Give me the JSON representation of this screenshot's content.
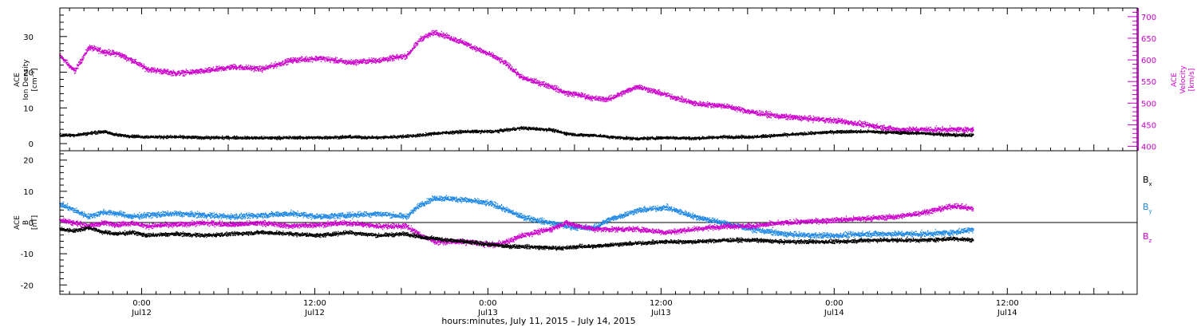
{
  "chart_data": [
    {
      "type": "scatter",
      "panel": "top",
      "ylabel_left": [
        "ACE",
        "Ion Density",
        "[cm⁻³]"
      ],
      "ylabel_right": [
        "ACE",
        "Velocity",
        "[km/s]"
      ],
      "ylim_left": [
        -2,
        38
      ],
      "ylim_right": [
        390,
        720
      ],
      "yticks_left": [
        0,
        10,
        20,
        30
      ],
      "yticks_right": [
        400,
        450,
        500,
        550,
        600,
        650,
        700
      ],
      "grid": false,
      "series": [
        {
          "axis": "left",
          "color": "#000000",
          "x": [
            0.0,
            1.0,
            2.0,
            3.0,
            4.0,
            5.0,
            6.0,
            8.0,
            10.0,
            12.0,
            14.0,
            16.0,
            18.0,
            20.0,
            22.0,
            24.0,
            25.0,
            26.0,
            28.0,
            30.0,
            31.0,
            32.0,
            34.0,
            35.0,
            36.0,
            37.0,
            38.0,
            40.0,
            42.0,
            44.0,
            46.0,
            48.0,
            50.0,
            52.0,
            54.0,
            56.0,
            58.0,
            60.0,
            62.0,
            63.3
          ],
          "y": [
            2.5,
            2.5,
            3.0,
            3.5,
            2.5,
            2.2,
            2.0,
            2.0,
            1.8,
            1.8,
            1.7,
            1.8,
            1.8,
            2.0,
            1.8,
            2.2,
            2.5,
            3.0,
            3.5,
            3.5,
            4.0,
            4.5,
            4.0,
            3.0,
            2.5,
            2.5,
            2.0,
            1.5,
            1.8,
            1.6,
            2.0,
            2.0,
            2.5,
            3.0,
            3.5,
            3.5,
            3.2,
            3.0,
            2.5,
            2.5
          ]
        },
        {
          "axis": "right",
          "color": "#cc00cc",
          "x": [
            0.0,
            1.0,
            2.0,
            3.0,
            4.0,
            5.0,
            6.0,
            8.0,
            10.0,
            12.0,
            14.0,
            16.0,
            18.0,
            20.0,
            22.0,
            24.0,
            25.0,
            26.0,
            28.0,
            30.0,
            31.0,
            32.0,
            34.0,
            35.0,
            36.0,
            37.0,
            38.0,
            40.0,
            42.0,
            44.0,
            46.0,
            48.0,
            50.0,
            52.0,
            54.0,
            56.0,
            58.0,
            60.0,
            62.0,
            63.3
          ],
          "y": [
            610,
            575,
            630,
            620,
            615,
            600,
            580,
            570,
            575,
            585,
            580,
            600,
            605,
            595,
            600,
            610,
            650,
            665,
            640,
            610,
            590,
            560,
            540,
            525,
            520,
            512,
            510,
            540,
            520,
            500,
            495,
            480,
            470,
            465,
            460,
            450,
            440,
            440,
            440,
            440
          ]
        }
      ]
    },
    {
      "type": "scatter",
      "panel": "bottom",
      "ylabel_left": [
        "ACE",
        "B",
        "[nT]"
      ],
      "ylim": [
        -23,
        23
      ],
      "yticks": [
        -20,
        -10,
        0,
        10,
        20
      ],
      "zero_line": true,
      "grid": false,
      "legend_position": "right",
      "series": [
        {
          "name": "Bx",
          "color": "#000000",
          "x": [
            0.0,
            1.0,
            2.0,
            3.0,
            4.0,
            5.0,
            6.0,
            8.0,
            10.0,
            12.0,
            14.0,
            16.0,
            18.0,
            20.0,
            22.0,
            24.0,
            25.0,
            26.0,
            28.0,
            30.0,
            31.0,
            32.0,
            34.0,
            35.0,
            36.0,
            37.0,
            38.0,
            40.0,
            42.0,
            44.0,
            46.0,
            48.0,
            50.0,
            52.0,
            54.0,
            56.0,
            58.0,
            60.0,
            62.0,
            63.3
          ],
          "y": [
            -2.0,
            -2.5,
            -1.5,
            -3.0,
            -3.5,
            -3.0,
            -4.0,
            -3.5,
            -4.0,
            -3.5,
            -3.0,
            -3.5,
            -4.0,
            -3.0,
            -4.0,
            -3.5,
            -4.5,
            -5.0,
            -6.0,
            -7.0,
            -7.5,
            -7.5,
            -8.0,
            -8.0,
            -7.5,
            -7.5,
            -7.0,
            -6.5,
            -6.0,
            -6.0,
            -5.5,
            -5.5,
            -6.0,
            -6.0,
            -6.0,
            -5.5,
            -5.5,
            -5.5,
            -5.0,
            -5.5
          ]
        },
        {
          "name": "By",
          "color": "#1e88e5",
          "x": [
            0.0,
            1.0,
            2.0,
            3.0,
            4.0,
            5.0,
            6.0,
            8.0,
            10.0,
            12.0,
            14.0,
            16.0,
            18.0,
            20.0,
            22.0,
            24.0,
            25.0,
            26.0,
            28.0,
            30.0,
            31.0,
            32.0,
            34.0,
            35.0,
            36.0,
            37.0,
            38.0,
            40.0,
            42.0,
            44.0,
            46.0,
            48.0,
            50.0,
            52.0,
            54.0,
            56.0,
            58.0,
            60.0,
            62.0,
            63.3
          ],
          "y": [
            6.0,
            4.0,
            2.0,
            3.5,
            3.0,
            2.0,
            2.5,
            3.0,
            2.5,
            2.0,
            2.5,
            3.0,
            2.0,
            2.5,
            3.0,
            2.0,
            6.0,
            8.0,
            7.5,
            6.0,
            4.0,
            2.0,
            0.0,
            -1.0,
            -1.5,
            -1.5,
            1.0,
            4.0,
            5.0,
            2.0,
            0.0,
            -2.0,
            -3.5,
            -4.0,
            -4.0,
            -3.5,
            -3.5,
            -3.5,
            -3.0,
            -2.0
          ]
        },
        {
          "name": "Bz",
          "color": "#cc00cc",
          "x": [
            0.0,
            1.0,
            2.0,
            3.0,
            4.0,
            5.0,
            6.0,
            8.0,
            10.0,
            12.0,
            14.0,
            16.0,
            18.0,
            20.0,
            22.0,
            24.0,
            25.0,
            26.0,
            28.0,
            30.0,
            31.0,
            32.0,
            34.0,
            35.0,
            36.0,
            37.0,
            38.0,
            40.0,
            42.0,
            44.0,
            46.0,
            48.0,
            50.0,
            52.0,
            54.0,
            56.0,
            58.0,
            60.0,
            62.0,
            63.3
          ],
          "y": [
            1.0,
            0.0,
            -1.0,
            0.0,
            -0.5,
            0.0,
            -1.0,
            -0.5,
            0.0,
            -0.5,
            0.0,
            -1.0,
            -0.5,
            0.0,
            -1.0,
            -1.0,
            -4.0,
            -6.0,
            -6.0,
            -7.0,
            -6.0,
            -4.0,
            -2.0,
            0.0,
            -1.0,
            -2.0,
            -2.0,
            -2.0,
            -3.0,
            -2.0,
            -1.0,
            -1.0,
            0.0,
            0.5,
            1.0,
            1.5,
            2.0,
            3.5,
            5.5,
            4.5
          ]
        }
      ]
    }
  ],
  "legend": {
    "bx_base": "B",
    "bx_sub": "x",
    "by_base": "B",
    "by_sub": "y",
    "bz_base": "B",
    "bz_sub": "z"
  },
  "xaxis": {
    "title": "hours:minutes, July 11, 2015 – July 14, 2015",
    "start": "2015-07-11 18:20",
    "end": "2015-07-14 20:00",
    "major_ticks": [
      {
        "hours": "0:00",
        "date": "Jul12",
        "x": 5.67
      },
      {
        "hours": "12:00",
        "date": "Jul12",
        "x": 17.67
      },
      {
        "hours": "0:00",
        "date": "Jul13",
        "x": 29.67
      },
      {
        "hours": "12:00",
        "date": "Jul13",
        "x": 41.67
      },
      {
        "hours": "0:00",
        "date": "Jul14",
        "x": 53.67
      },
      {
        "hours": "12:00",
        "date": "Jul14",
        "x": 65.67
      }
    ]
  }
}
